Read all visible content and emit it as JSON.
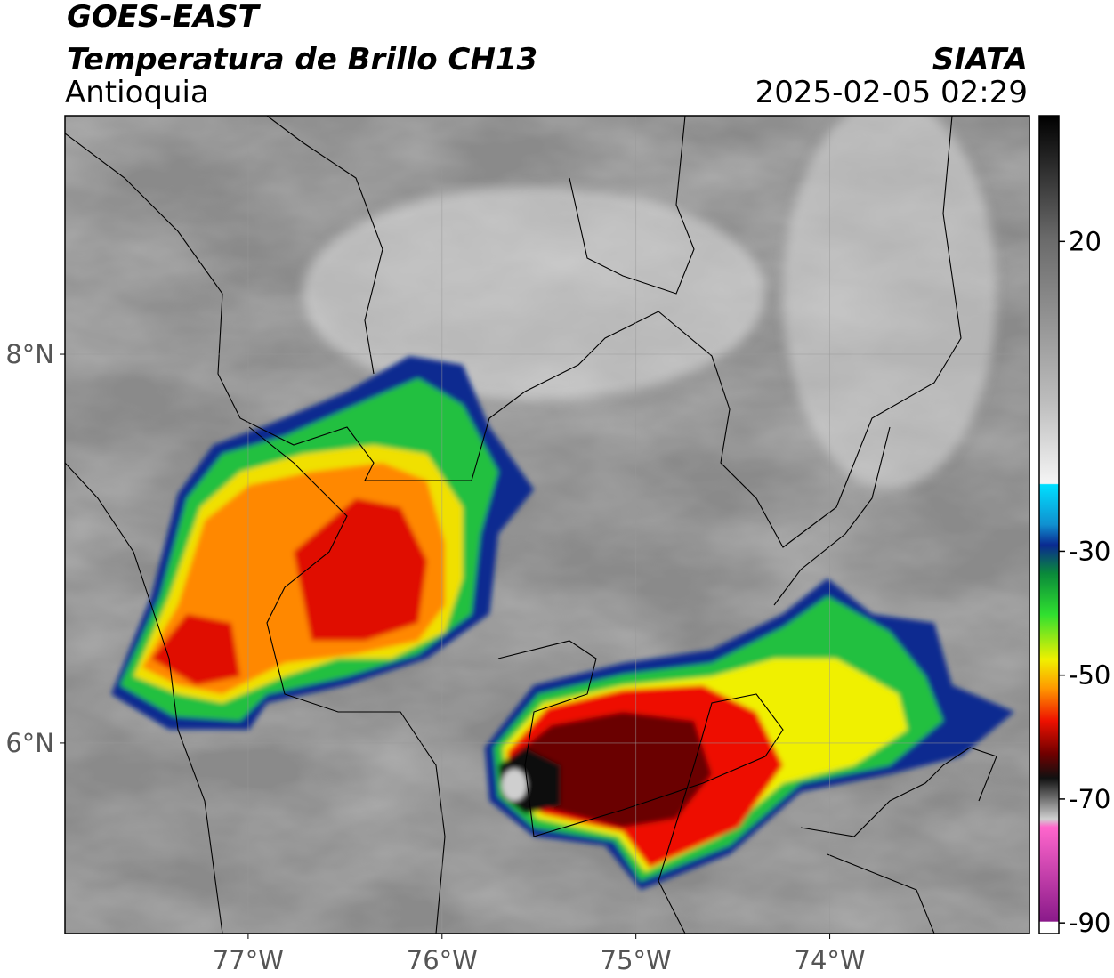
{
  "header": {
    "title": "GOES-EAST",
    "subtitle": "Temperatura de Brillo CH13",
    "region": "Antioquia",
    "source": "SIATA",
    "timestamp": "2025-02-05 02:29"
  },
  "map": {
    "xlim": [
      -77.945,
      -72.97
    ],
    "ylim": [
      5.02,
      9.227
    ],
    "xticks": [
      {
        "value": -77,
        "label": "77°W"
      },
      {
        "value": -76,
        "label": "76°W"
      },
      {
        "value": -75,
        "label": "75°W"
      },
      {
        "value": -74,
        "label": "74°W"
      }
    ],
    "yticks": [
      {
        "value": 6,
        "label": "6°N"
      },
      {
        "value": 8,
        "label": "8°N"
      }
    ],
    "grid": true
  },
  "colorbar": {
    "lim": [
      -91.7,
      40.3
    ],
    "ticks": [
      20,
      -30,
      -50,
      -70,
      -90
    ]
  }
}
